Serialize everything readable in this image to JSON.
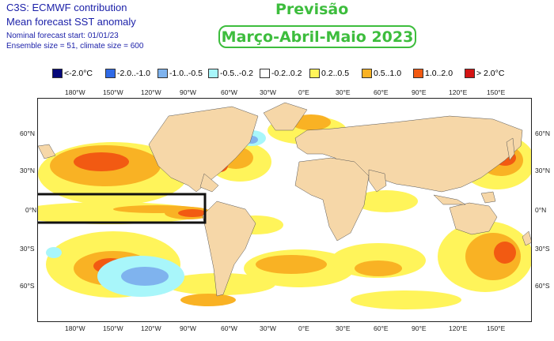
{
  "header": {
    "line1": "C3S: ECMWF contribution",
    "line2": "Mean forecast SST anomaly",
    "line3": "Nominal forecast start: 01/01/23",
    "line4": "Ensemble size = 51, climate size = 600",
    "title": "Previsão",
    "period": "Março-Abril-Maio 2023"
  },
  "legend": [
    {
      "label": "<-2.0°C",
      "color": "#06087a"
    },
    {
      "label": "-2.0..-1.0",
      "color": "#2f6ae6"
    },
    {
      "label": "-1.0..-0.5",
      "color": "#7fb3ee"
    },
    {
      "label": "-0.5..-0.2",
      "color": "#a8f6fa"
    },
    {
      "label": "-0.2..0.2",
      "color": "#ffffff"
    },
    {
      "label": "0.2..0.5",
      "color": "#fff45a"
    },
    {
      "label": "0.5..1.0",
      "color": "#f9b224"
    },
    {
      "label": "1.0..2.0",
      "color": "#f25a12"
    },
    {
      "label": "> 2.0°C",
      "color": "#d41414"
    }
  ],
  "map": {
    "land_color": "#f6d7a8",
    "lon_labels": [
      "180°W",
      "150°W",
      "120°W",
      "90°W",
      "60°W",
      "30°W",
      "0°E",
      "30°E",
      "60°E",
      "90°E",
      "120°E",
      "150°E"
    ],
    "lat_labels": [
      "60°N",
      "30°N",
      "0°N",
      "30°S",
      "60°S"
    ],
    "highlight": "Niño region box"
  }
}
